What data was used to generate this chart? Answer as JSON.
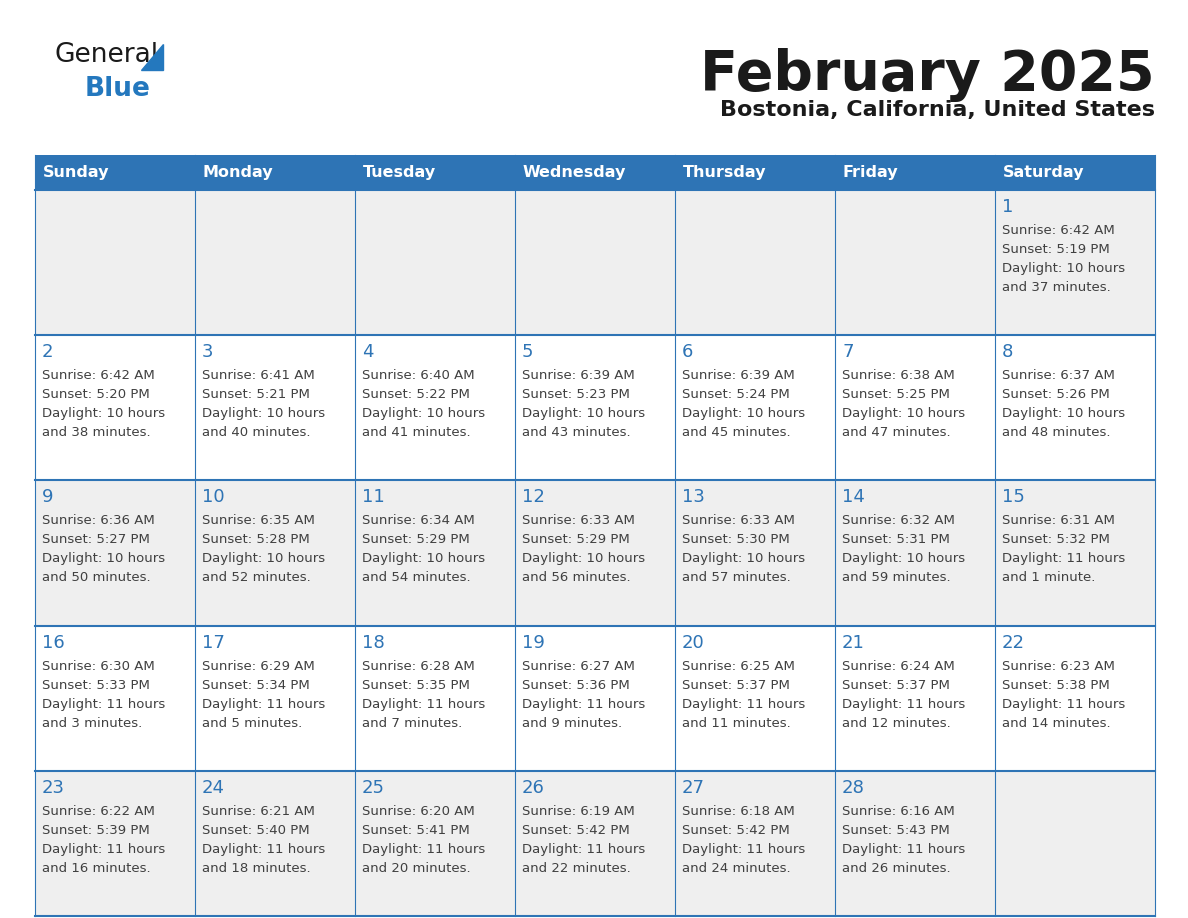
{
  "title": "February 2025",
  "subtitle": "Bostonia, California, United States",
  "header_color": "#2E74B5",
  "header_text_color": "#FFFFFF",
  "day_names": [
    "Sunday",
    "Monday",
    "Tuesday",
    "Wednesday",
    "Thursday",
    "Friday",
    "Saturday"
  ],
  "background_color": "#FFFFFF",
  "cell_bg_white": "#FFFFFF",
  "cell_bg_gray": "#EFEFEF",
  "text_color": "#404040",
  "day_num_color": "#2E74B5",
  "calendar_data": [
    [
      null,
      null,
      null,
      null,
      null,
      null,
      {
        "day": 1,
        "sunrise": "6:42 AM",
        "sunset": "5:19 PM",
        "daylight": "10 hours and 37 minutes."
      }
    ],
    [
      {
        "day": 2,
        "sunrise": "6:42 AM",
        "sunset": "5:20 PM",
        "daylight": "10 hours and 38 minutes."
      },
      {
        "day": 3,
        "sunrise": "6:41 AM",
        "sunset": "5:21 PM",
        "daylight": "10 hours and 40 minutes."
      },
      {
        "day": 4,
        "sunrise": "6:40 AM",
        "sunset": "5:22 PM",
        "daylight": "10 hours and 41 minutes."
      },
      {
        "day": 5,
        "sunrise": "6:39 AM",
        "sunset": "5:23 PM",
        "daylight": "10 hours and 43 minutes."
      },
      {
        "day": 6,
        "sunrise": "6:39 AM",
        "sunset": "5:24 PM",
        "daylight": "10 hours and 45 minutes."
      },
      {
        "day": 7,
        "sunrise": "6:38 AM",
        "sunset": "5:25 PM",
        "daylight": "10 hours and 47 minutes."
      },
      {
        "day": 8,
        "sunrise": "6:37 AM",
        "sunset": "5:26 PM",
        "daylight": "10 hours and 48 minutes."
      }
    ],
    [
      {
        "day": 9,
        "sunrise": "6:36 AM",
        "sunset": "5:27 PM",
        "daylight": "10 hours and 50 minutes."
      },
      {
        "day": 10,
        "sunrise": "6:35 AM",
        "sunset": "5:28 PM",
        "daylight": "10 hours and 52 minutes."
      },
      {
        "day": 11,
        "sunrise": "6:34 AM",
        "sunset": "5:29 PM",
        "daylight": "10 hours and 54 minutes."
      },
      {
        "day": 12,
        "sunrise": "6:33 AM",
        "sunset": "5:29 PM",
        "daylight": "10 hours and 56 minutes."
      },
      {
        "day": 13,
        "sunrise": "6:33 AM",
        "sunset": "5:30 PM",
        "daylight": "10 hours and 57 minutes."
      },
      {
        "day": 14,
        "sunrise": "6:32 AM",
        "sunset": "5:31 PM",
        "daylight": "10 hours and 59 minutes."
      },
      {
        "day": 15,
        "sunrise": "6:31 AM",
        "sunset": "5:32 PM",
        "daylight": "11 hours and 1 minute."
      }
    ],
    [
      {
        "day": 16,
        "sunrise": "6:30 AM",
        "sunset": "5:33 PM",
        "daylight": "11 hours and 3 minutes."
      },
      {
        "day": 17,
        "sunrise": "6:29 AM",
        "sunset": "5:34 PM",
        "daylight": "11 hours and 5 minutes."
      },
      {
        "day": 18,
        "sunrise": "6:28 AM",
        "sunset": "5:35 PM",
        "daylight": "11 hours and 7 minutes."
      },
      {
        "day": 19,
        "sunrise": "6:27 AM",
        "sunset": "5:36 PM",
        "daylight": "11 hours and 9 minutes."
      },
      {
        "day": 20,
        "sunrise": "6:25 AM",
        "sunset": "5:37 PM",
        "daylight": "11 hours and 11 minutes."
      },
      {
        "day": 21,
        "sunrise": "6:24 AM",
        "sunset": "5:37 PM",
        "daylight": "11 hours and 12 minutes."
      },
      {
        "day": 22,
        "sunrise": "6:23 AM",
        "sunset": "5:38 PM",
        "daylight": "11 hours and 14 minutes."
      }
    ],
    [
      {
        "day": 23,
        "sunrise": "6:22 AM",
        "sunset": "5:39 PM",
        "daylight": "11 hours and 16 minutes."
      },
      {
        "day": 24,
        "sunrise": "6:21 AM",
        "sunset": "5:40 PM",
        "daylight": "11 hours and 18 minutes."
      },
      {
        "day": 25,
        "sunrise": "6:20 AM",
        "sunset": "5:41 PM",
        "daylight": "11 hours and 20 minutes."
      },
      {
        "day": 26,
        "sunrise": "6:19 AM",
        "sunset": "5:42 PM",
        "daylight": "11 hours and 22 minutes."
      },
      {
        "day": 27,
        "sunrise": "6:18 AM",
        "sunset": "5:42 PM",
        "daylight": "11 hours and 24 minutes."
      },
      {
        "day": 28,
        "sunrise": "6:16 AM",
        "sunset": "5:43 PM",
        "daylight": "11 hours and 26 minutes."
      },
      null
    ]
  ],
  "logo_general_color": "#1a1a1a",
  "logo_blue_color": "#2478BE",
  "logo_triangle_color": "#2478BE"
}
